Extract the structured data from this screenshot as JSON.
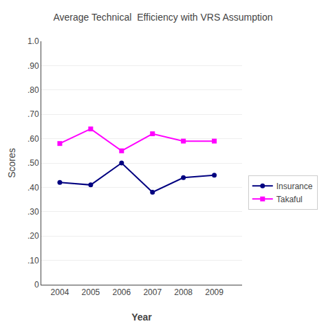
{
  "chart_data": {
    "type": "line",
    "title": "Average Technical  Efficiency with VRS Assumption",
    "x_label": "Year",
    "y_label": "Scores",
    "x": [
      2004,
      2005,
      2006,
      2007,
      2008,
      2009
    ],
    "series": [
      {
        "name": "Insurance",
        "color": "#000080",
        "marker": "circle",
        "values": [
          0.42,
          0.41,
          0.5,
          0.38,
          0.44,
          0.45
        ]
      },
      {
        "name": "Takaful",
        "color": "#FF00FF",
        "marker": "square",
        "values": [
          0.58,
          0.64,
          0.55,
          0.62,
          0.59,
          0.59
        ]
      }
    ],
    "xlim": [
      2003.4,
      2009.9
    ],
    "xticks": [
      2004,
      2005,
      2006,
      2007,
      2008,
      2009
    ],
    "ylim": [
      0.0,
      1.0
    ],
    "yticks": [
      0,
      {
        "value": 0.1,
        "label": ".10"
      },
      {
        "value": 0.2,
        "label": ".20"
      },
      {
        "value": 0.3,
        "label": ".30"
      },
      {
        "value": 0.4,
        "label": ".40"
      },
      {
        "value": 0.5,
        "label": ".50"
      },
      {
        "value": 0.6,
        "label": ".60"
      },
      {
        "value": 0.7,
        "label": ".70"
      },
      {
        "value": 0.8,
        "label": ".80"
      },
      {
        "value": 0.9,
        "label": ".90"
      },
      {
        "value": 1.0,
        "label": "1.0"
      }
    ],
    "grid": "y",
    "legend": "right"
  }
}
